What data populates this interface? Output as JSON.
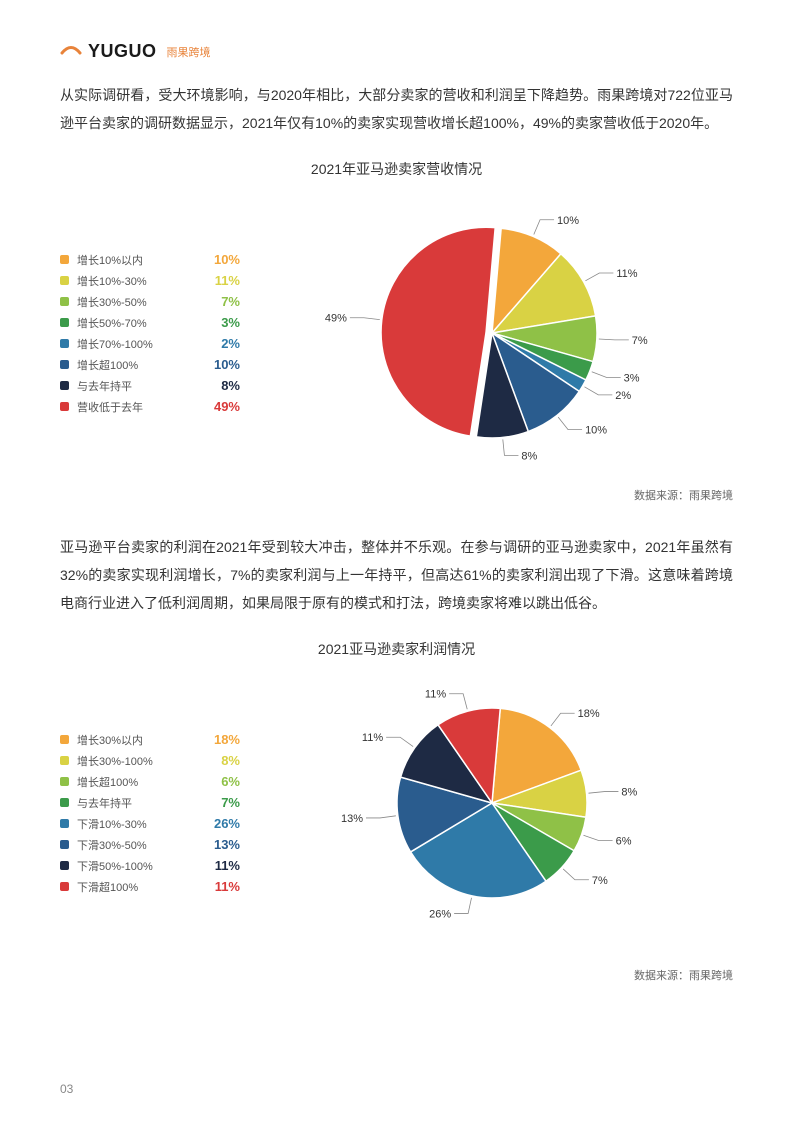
{
  "logo": {
    "brand": "YUGUO",
    "cn": "雨果跨境"
  },
  "para1": "从实际调研看，受大环境影响，与2020年相比，大部分卖家的营收和利润呈下降趋势。雨果跨境对722位亚马逊平台卖家的调研数据显示，2021年仅有10%的卖家实现营收增长超100%，49%的卖家营收低于2020年。",
  "chart1": {
    "title": "2021年亚马逊卖家营收情况",
    "source": "数据来源：雨果跨境",
    "slices": [
      {
        "label": "增长10%以内",
        "value": 10,
        "text": "10%",
        "color": "#f3a73b"
      },
      {
        "label": "增长10%-30%",
        "value": 11,
        "text": "11%",
        "color": "#d9d244"
      },
      {
        "label": "增长30%-50%",
        "value": 7,
        "text": "7%",
        "color": "#8fc147"
      },
      {
        "label": "增长50%-70%",
        "value": 3,
        "text": "3%",
        "color": "#3b9b4a"
      },
      {
        "label": "增长70%-100%",
        "value": 2,
        "text": "2%",
        "color": "#2f7aa8"
      },
      {
        "label": "增长超100%",
        "value": 10,
        "text": "10%",
        "color": "#2a5c8e"
      },
      {
        "label": "与去年持平",
        "value": 8,
        "text": "8%",
        "color": "#1e2a44"
      },
      {
        "label": "营收低于去年",
        "value": 49,
        "text": "49%",
        "color": "#d93a3a"
      }
    ]
  },
  "para2": "亚马逊平台卖家的利润在2021年受到较大冲击，整体并不乐观。在参与调研的亚马逊卖家中，2021年虽然有32%的卖家实现利润增长，7%的卖家利润与上一年持平，但高达61%的卖家利润出现了下滑。这意味着跨境电商行业进入了低利润周期，如果局限于原有的模式和打法，跨境卖家将难以跳出低谷。",
  "chart2": {
    "title": "2021亚马逊卖家利润情况",
    "source": "数据来源：雨果跨境",
    "slices": [
      {
        "label": "增长30%以内",
        "value": 18,
        "text": "18%",
        "color": "#f3a73b"
      },
      {
        "label": "增长30%-100%",
        "value": 8,
        "text": "8%",
        "color": "#d9d244"
      },
      {
        "label": "增长超100%",
        "value": 6,
        "text": "6%",
        "color": "#8fc147"
      },
      {
        "label": "与去年持平",
        "value": 7,
        "text": "7%",
        "color": "#3b9b4a"
      },
      {
        "label": "下滑10%-30%",
        "value": 26,
        "text": "26%",
        "color": "#2f7aa8"
      },
      {
        "label": "下滑30%-50%",
        "value": 13,
        "text": "13%",
        "color": "#2a5c8e"
      },
      {
        "label": "下滑50%-100%",
        "value": 11,
        "text": "11%",
        "color": "#1e2a44"
      },
      {
        "label": "下滑超100%",
        "value": 11,
        "text": "11%",
        "color": "#d93a3a"
      }
    ]
  },
  "pageNum": "03"
}
